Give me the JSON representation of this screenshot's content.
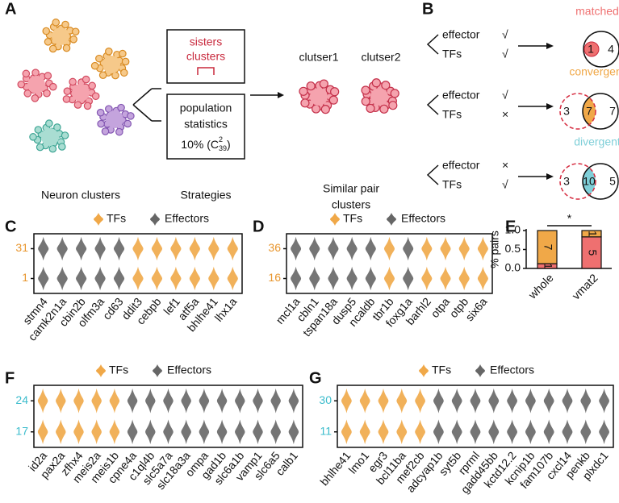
{
  "panel_labels": [
    "A",
    "B",
    "C",
    "D",
    "E",
    "F",
    "G"
  ],
  "panel_a": {
    "caption": "Neuron clusters",
    "box1": [
      "sisters",
      "clusters"
    ],
    "box2": [
      "population",
      "statistics"
    ],
    "formula": "10% (C",
    "formula_sup": "2",
    "formula_sub": "39",
    "formula_end": ")",
    "strategies": "Strategies",
    "cluster1": "clutser1",
    "cluster2": "clutser2",
    "result": [
      "Similar pair",
      "clusters"
    ]
  },
  "panel_b": {
    "rows": [
      {
        "effector": "effector",
        "effector_mark": "√",
        "tfs": "TFs",
        "tfs_mark": "√",
        "title": "matched",
        "color": "#ef7070",
        "labels": [
          "1",
          "4"
        ]
      },
      {
        "effector": "effector",
        "effector_mark": "√",
        "tfs": "TFs",
        "tfs_mark": "×",
        "title": "convergent",
        "color": "#f0a848",
        "labels": [
          "3",
          "7",
          "7"
        ]
      },
      {
        "effector": "effector",
        "effector_mark": "×",
        "tfs": "TFs",
        "tfs_mark": "√",
        "title": "divergent",
        "color": "#7fcfd8",
        "labels": [
          "3",
          "10",
          "5"
        ]
      }
    ]
  },
  "violins": [
    {
      "legend_tf": "TFs",
      "legend_effector": "Effectors",
      "tf_color": "#f0a848",
      "effector_color": "#666666",
      "row_labels": [
        "31",
        "1"
      ],
      "row_color": "#e8962e",
      "genes": [
        "stmn4",
        "camk2n1a",
        "cbin2b",
        "olfm3a",
        "cd63",
        "ddit3",
        "cebpb",
        "lef1",
        "atf5a",
        "bhlhe41",
        "lhx1a"
      ],
      "gene_colors": [
        "#666666",
        "#666666",
        "#666666",
        "#666666",
        "#666666",
        "#f0a848",
        "#f0a848",
        "#f0a848",
        "#f0a848",
        "#f0a848",
        "#f0a848"
      ]
    },
    {
      "legend_tf": "TFs",
      "legend_effector": "Effectors",
      "tf_color": "#f0a848",
      "effector_color": "#666666",
      "row_labels": [
        "36",
        "16"
      ],
      "row_color": "#e8962e",
      "genes": [
        "mcl1a",
        "cbln1",
        "tspan18a",
        "dusp5",
        "ncaldb",
        "tbr1b",
        "foxg1a",
        "barhl2",
        "otpa",
        "otpb",
        "six6a"
      ],
      "gene_colors": [
        "#666666",
        "#666666",
        "#666666",
        "#666666",
        "#666666",
        "#f0a848",
        "#666666",
        "#f0a848",
        "#f0a848",
        "#f0a848",
        "#f0a848"
      ]
    },
    {
      "legend_tf": "TFs",
      "legend_effector": "Effectors",
      "tf_color": "#f0a848",
      "effector_color": "#666666",
      "row_labels": [
        "24",
        "17"
      ],
      "row_color": "#3bbccc",
      "genes": [
        "id2a",
        "pax2a",
        "zfhx4",
        "meis2a",
        "meis1b",
        "cpne4a",
        "c1ql4b",
        "slc5a7a",
        "slc18a3a",
        "ompa",
        "gad1b",
        "slc6a1b",
        "vamp1",
        "slc6a5",
        "calb1"
      ],
      "gene_colors": [
        "#f0a848",
        "#f0a848",
        "#f0a848",
        "#f0a848",
        "#f0a848",
        "#666666",
        "#666666",
        "#666666",
        "#666666",
        "#666666",
        "#666666",
        "#666666",
        "#666666",
        "#666666",
        "#666666"
      ]
    },
    {
      "legend_tf": "TFs",
      "legend_effector": "Effectors",
      "tf_color": "#f0a848",
      "effector_color": "#666666",
      "row_labels": [
        "30",
        "11"
      ],
      "row_color": "#3bbccc",
      "genes": [
        "bhlhe41",
        "lmo1",
        "egr3",
        "bcl11ba",
        "mef2cb",
        "adcyap1b",
        "syt5b",
        "rprml",
        "gadd45bb",
        "kctd12.2",
        "kcnip1b",
        "fam107b",
        "cxcl14",
        "penkb",
        "plxdc1"
      ],
      "gene_colors": [
        "#f0a848",
        "#f0a848",
        "#f0a848",
        "#f0a848",
        "#f0a848",
        "#666666",
        "#666666",
        "#666666",
        "#666666",
        "#666666",
        "#666666",
        "#666666",
        "#666666",
        "#666666",
        "#666666"
      ]
    }
  ],
  "chart_data": {
    "type": "bar",
    "stacked": true,
    "categories": [
      "whole",
      "vmat2"
    ],
    "ylabel": "% pairs",
    "ylim": [
      0,
      1
    ],
    "yticks": [
      {
        "value": 0,
        "label": "0.0"
      },
      {
        "value": 0.5,
        "label": "0.5"
      },
      {
        "value": 1,
        "label": "1.0"
      }
    ],
    "series": [
      {
        "color": "#ef7070",
        "values": [
          0.125,
          0.8333
        ],
        "value_labels": [
          "1",
          "5"
        ]
      },
      {
        "color": "#f0a848",
        "values": [
          0.875,
          0.1667
        ],
        "value_labels": [
          "7",
          "1"
        ]
      }
    ],
    "annotation": "*"
  }
}
